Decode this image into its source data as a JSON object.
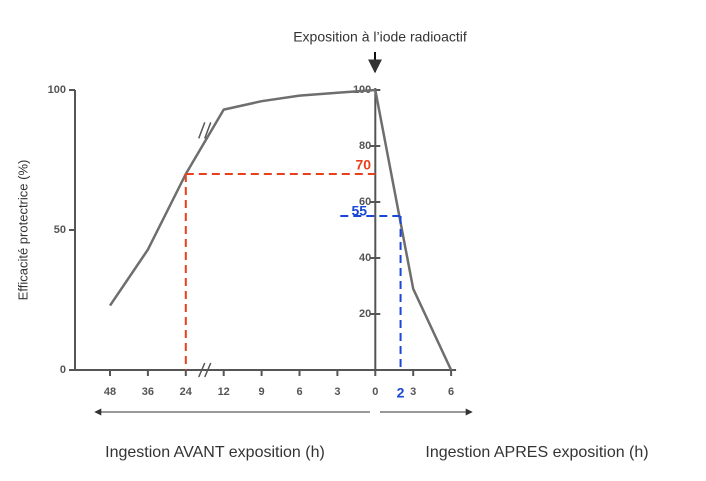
{
  "chart_data": {
    "type": "line",
    "title": "Exposition à l’iode radioactif",
    "y_label": "Efficacité protectrice (%)",
    "x_label_before": "Ingestion AVANT exposition (h)",
    "x_label_after": "Ingestion APRES exposition (h)",
    "categories": [
      "48",
      "36",
      "24",
      "12",
      "9",
      "6",
      "3",
      "0",
      "3",
      "6"
    ],
    "values": [
      23,
      43,
      70,
      93,
      96,
      98,
      99,
      100,
      29,
      0
    ],
    "color": "#6e6e6e",
    "ylim": [
      0,
      100
    ],
    "yticks": [
      0,
      50,
      100
    ],
    "y2lim": [
      0,
      100
    ],
    "y2ticks": [
      20,
      40,
      60,
      80,
      100
    ],
    "highlights": [
      {
        "x": 24,
        "y": 70,
        "color": "#e8401c"
      },
      {
        "x": 2,
        "y": 55,
        "color": "#1a47d6"
      }
    ]
  }
}
